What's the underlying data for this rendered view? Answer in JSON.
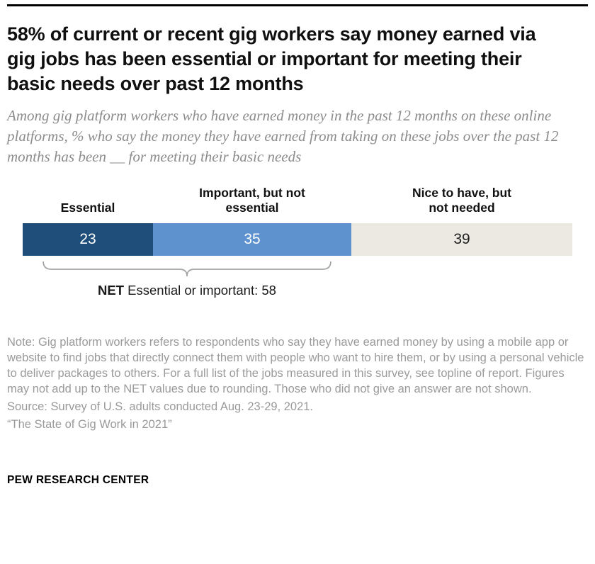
{
  "header": {
    "title": "58% of current or recent gig workers say money earned via gig jobs has been essential or important for meeting their basic needs over past 12 months",
    "subtitle": "Among gig platform workers who have earned money in the past 12 months on these online platforms, % who say the money they have earned from taking on these jobs over the past 12 months has been __ for meeting their basic needs"
  },
  "chart_data": {
    "type": "bar",
    "variant": "horizontal-stacked-single-bar",
    "categories": [
      "Essential",
      "Important, but not essential",
      "Nice to have, but not needed"
    ],
    "values": [
      23,
      35,
      39
    ],
    "segment_colors": [
      "#1e4e79",
      "#5e92ce",
      "#ece9e3"
    ],
    "value_label_colors": [
      "#ffffff",
      "#ffffff",
      "#1f1f1f"
    ],
    "net": {
      "prefix": "NET",
      "rest": " Essential or important: 58",
      "value": 58,
      "spans_categories": [
        "Essential",
        "Important, but not essential"
      ]
    },
    "legend_position": "above-bar",
    "grid": false
  },
  "notes": {
    "note": "Note: Gig platform workers refers to respondents who say they have earned money by using a mobile app or website to find jobs that directly connect them with people who want to hire them, or by using a personal vehicle to deliver packages to others. For a full list of the jobs measured in this survey, see topline of report. Figures may not add up to the NET values due to rounding. Those who did not give an answer are not shown.",
    "source": "Source: Survey of U.S. adults conducted Aug. 23-29, 2021.",
    "report": "“The State of Gig Work in 2021”"
  },
  "footer": {
    "brand": "PEW RESEARCH CENTER"
  }
}
